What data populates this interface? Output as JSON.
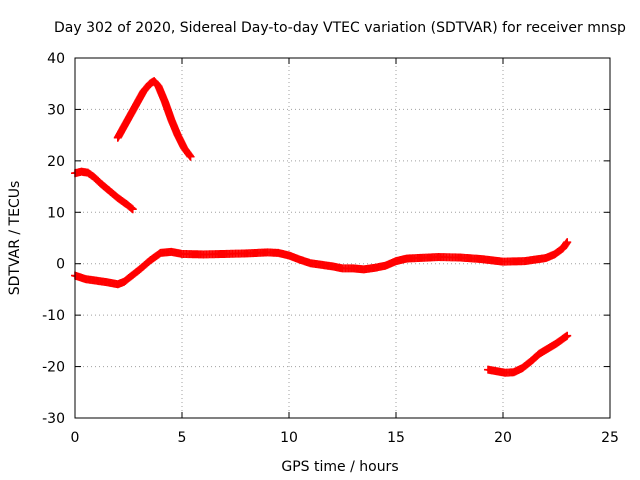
{
  "chart_data": {
    "type": "scatter",
    "title": "Day 302 of 2020, Sidereal Day-to-day VTEC variation (SDTVAR) for receiver mnsp",
    "xlabel": "GPS time / hours",
    "ylabel": "SDTVAR / TECUs",
    "xlim": [
      0,
      25
    ],
    "ylim": [
      -30,
      40
    ],
    "xticks": [
      "0",
      "5",
      "10",
      "15",
      "20",
      "25"
    ],
    "yticks": [
      "40",
      "30",
      "20",
      "10",
      "0",
      "-10",
      "-20",
      "-30"
    ],
    "grid": true,
    "marker_color": "#ff0000",
    "series": [
      {
        "name": "arc-1",
        "x": [
          0.0,
          0.3,
          0.6,
          0.9,
          1.2,
          1.6,
          2.0,
          2.4,
          2.7
        ],
        "y": [
          17.6,
          17.9,
          17.7,
          16.8,
          15.6,
          14.2,
          12.8,
          11.6,
          10.6
        ]
      },
      {
        "name": "arc-2",
        "x": [
          2.0,
          2.4,
          2.8,
          3.2,
          3.5,
          3.7,
          3.9,
          4.2,
          4.5,
          4.8,
          5.1,
          5.4
        ],
        "y": [
          24.5,
          27.5,
          30.5,
          33.5,
          35.0,
          35.5,
          34.5,
          31.5,
          28.0,
          25.0,
          22.5,
          20.8
        ]
      },
      {
        "name": "arc-3",
        "x": [
          0.0,
          0.5,
          1.0,
          1.5,
          2.0,
          2.3,
          2.6,
          3.0,
          3.5,
          4.0,
          4.5,
          5.0,
          6.0,
          7.0,
          8.0,
          9.0,
          9.5,
          10.0,
          10.5,
          11.0,
          11.5,
          12.0,
          12.5,
          13.0,
          13.5,
          14.0,
          14.5,
          15.0,
          15.5,
          16.0,
          17.0,
          18.0,
          19.0,
          20.0,
          21.0,
          21.5,
          22.0,
          22.4,
          22.8,
          23.0
        ],
        "y": [
          -2.3,
          -3.0,
          -3.3,
          -3.6,
          -4.0,
          -3.5,
          -2.5,
          -1.2,
          0.6,
          2.1,
          2.3,
          1.9,
          1.8,
          1.9,
          2.0,
          2.2,
          2.1,
          1.6,
          0.8,
          0.1,
          -0.2,
          -0.5,
          -0.9,
          -0.9,
          -1.1,
          -0.8,
          -0.4,
          0.5,
          1.0,
          1.1,
          1.3,
          1.2,
          0.9,
          0.4,
          0.5,
          0.8,
          1.1,
          1.8,
          3.0,
          4.2
        ]
      },
      {
        "name": "arc-4",
        "x": [
          19.3,
          19.7,
          20.1,
          20.5,
          20.9,
          21.3,
          21.7,
          22.1,
          22.5,
          23.0
        ],
        "y": [
          -20.6,
          -20.9,
          -21.2,
          -21.1,
          -20.3,
          -19.0,
          -17.5,
          -16.5,
          -15.5,
          -14.0
        ]
      }
    ]
  }
}
